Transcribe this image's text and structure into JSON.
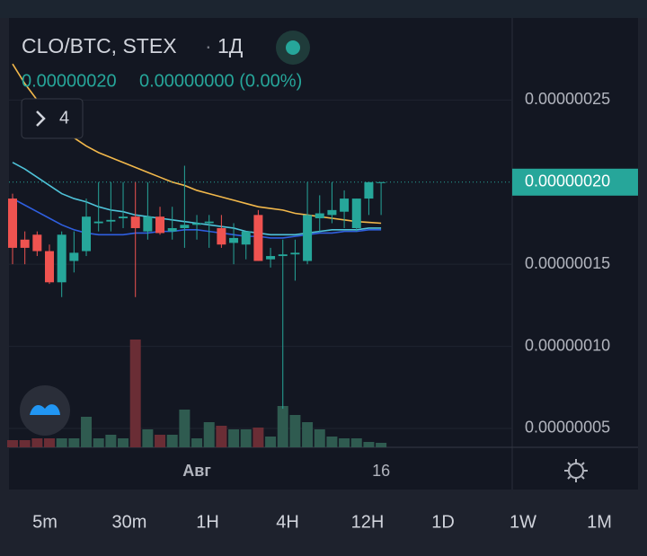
{
  "header": {
    "symbol": "CLO/BTC, STEX",
    "interval": "1Д",
    "last": "0.00000020",
    "change": "0.00000000 (0.00%)",
    "indicators_count": "4"
  },
  "chart_data": {
    "type": "candlestick",
    "categories": [
      null,
      null,
      null,
      null,
      null,
      null,
      null,
      null,
      null,
      null,
      null,
      null,
      null,
      null,
      null,
      "Авг",
      null,
      null,
      null,
      null,
      null,
      null,
      null,
      null,
      null,
      null,
      null,
      null,
      null,
      null,
      "16"
    ],
    "open": [
      1.9e-07,
      1.65e-07,
      1.68e-07,
      1.58e-07,
      1.39e-07,
      1.52e-07,
      1.58e-07,
      1.75e-07,
      1.76e-07,
      1.78e-07,
      1.79e-07,
      1.7e-07,
      1.79e-07,
      1.7e-07,
      1.72e-07,
      1.74e-07,
      1.75e-07,
      1.72e-07,
      1.63e-07,
      1.62e-07,
      1.8e-07,
      1.53e-07,
      1.55e-07,
      1.56e-07,
      1.52e-07,
      1.78e-07,
      1.8e-07,
      1.82e-07,
      1.72e-07,
      1.9e-07,
      2e-07
    ],
    "high": [
      1.93e-07,
      1.7e-07,
      1.7e-07,
      1.62e-07,
      1.7e-07,
      1.7e-07,
      1.9e-07,
      2e-07,
      2e-07,
      2e-07,
      2e-07,
      2e-07,
      1.85e-07,
      1.85e-07,
      2.1e-07,
      1.8e-07,
      1.8e-07,
      1.8e-07,
      1.75e-07,
      1.7e-07,
      1.83e-07,
      1.6e-07,
      1.65e-07,
      1.65e-07,
      2e-07,
      1.92e-07,
      2e-07,
      1.95e-07,
      1.9e-07,
      2e-07,
      2e-07
    ],
    "low": [
      1.5e-07,
      1.5e-07,
      1.55e-07,
      1.38e-07,
      1.3e-07,
      1.45e-07,
      1.55e-07,
      1.7e-07,
      1.7e-07,
      1.72e-07,
      1.3e-07,
      1.65e-07,
      1.68e-07,
      1.65e-07,
      1.6e-07,
      1.65e-07,
      1.6e-07,
      1.6e-07,
      1.5e-07,
      1.53e-07,
      1.52e-07,
      1.48e-07,
      6.2e-08,
      1.4e-07,
      1.5e-07,
      1.7e-07,
      1.75e-07,
      1.72e-07,
      1.7e-07,
      1.8e-07,
      1.8e-07
    ],
    "close": [
      1.6e-07,
      1.6e-07,
      1.58e-07,
      1.39e-07,
      1.68e-07,
      1.57e-07,
      1.79e-07,
      1.76e-07,
      1.77e-07,
      1.79e-07,
      1.72e-07,
      1.79e-07,
      1.69e-07,
      1.72e-07,
      1.74e-07,
      1.75e-07,
      1.76e-07,
      1.62e-07,
      1.66e-07,
      1.7e-07,
      1.52e-07,
      1.55e-07,
      1.56e-07,
      1.57e-07,
      1.8e-07,
      1.81e-07,
      1.83e-07,
      1.9e-07,
      1.9e-07,
      2e-07,
      2e-07
    ],
    "volume": [
      8,
      8,
      10,
      10,
      10,
      10,
      34,
      10,
      14,
      10,
      120,
      20,
      14,
      14,
      42,
      10,
      28,
      24,
      20,
      20,
      22,
      12,
      46,
      36,
      28,
      20,
      12,
      10,
      10,
      6,
      5
    ],
    "up_color": "#26a69a",
    "down_color": "#ef5350",
    "volume_up_color": "#2f5b50",
    "volume_down_color": "#6a2d35",
    "moving_averages": [
      {
        "color": "#f2b84b",
        "values": [
          2.72e-07,
          2.6e-07,
          2.5e-07,
          2.4e-07,
          2.33e-07,
          2.27e-07,
          2.22e-07,
          2.18e-07,
          2.15e-07,
          2.12e-07,
          2.09e-07,
          2.06e-07,
          2.03e-07,
          2e-07,
          1.98e-07,
          1.95e-07,
          1.93e-07,
          1.91e-07,
          1.89e-07,
          1.87e-07,
          1.85e-07,
          1.84e-07,
          1.83e-07,
          1.81e-07,
          1.8e-07,
          1.79e-07,
          1.78e-07,
          1.77e-07,
          1.76e-07,
          1.755e-07,
          1.75e-07
        ]
      },
      {
        "color": "#4fc3d9",
        "values": [
          2.12e-07,
          2.08e-07,
          2.03e-07,
          1.98e-07,
          1.93e-07,
          1.9e-07,
          1.88e-07,
          1.85e-07,
          1.83e-07,
          1.82e-07,
          1.8e-07,
          1.79e-07,
          1.78e-07,
          1.77e-07,
          1.76e-07,
          1.75e-07,
          1.74e-07,
          1.73e-07,
          1.72e-07,
          1.7e-07,
          1.69e-07,
          1.68e-07,
          1.68e-07,
          1.68e-07,
          1.69e-07,
          1.7e-07,
          1.71e-07,
          1.71e-07,
          1.71e-07,
          1.72e-07,
          1.72e-07
        ]
      },
      {
        "color": "#2f5fe0",
        "values": [
          1.9e-07,
          1.86e-07,
          1.82e-07,
          1.78e-07,
          1.74e-07,
          1.71e-07,
          1.69e-07,
          1.68e-07,
          1.68e-07,
          1.68e-07,
          1.69e-07,
          1.69e-07,
          1.7e-07,
          1.7e-07,
          1.71e-07,
          1.71e-07,
          1.7e-07,
          1.69e-07,
          1.68e-07,
          1.67e-07,
          1.67e-07,
          1.66e-07,
          1.66e-07,
          1.67e-07,
          1.68e-07,
          1.69e-07,
          1.69e-07,
          1.7e-07,
          1.7e-07,
          1.71e-07,
          1.71e-07
        ]
      }
    ],
    "ylim": [
      3.85e-08,
      3e-07
    ],
    "yticks": [
      {
        "value": 5e-08,
        "label": "0.00000005"
      },
      {
        "value": 1e-07,
        "label": "0.00000010"
      },
      {
        "value": 1.5e-07,
        "label": "0.00000015"
      },
      {
        "value": 2.5e-07,
        "label": "0.00000025"
      }
    ],
    "last_price": {
      "value": 2e-07,
      "label": "0.00000020"
    },
    "grid": true
  },
  "timeframes": [
    "5m",
    "30m",
    "1H",
    "4H",
    "12H",
    "1D",
    "1W",
    "1M"
  ]
}
